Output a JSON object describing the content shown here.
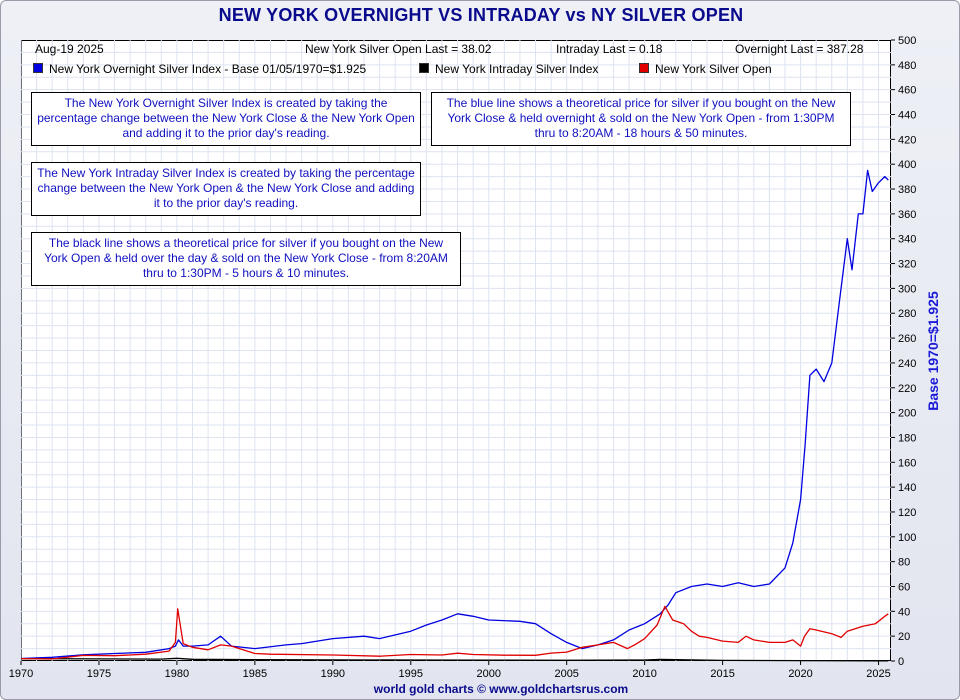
{
  "title": "NEW YORK OVERNIGHT VS INTRADAY vs NY SILVER OPEN",
  "header": {
    "date": "Aug-19  2025",
    "open_last": "New York Silver Open Last = 38.02",
    "intraday_last": "Intraday Last = 0.18",
    "overnight_last": "Overnight Last = 387.28"
  },
  "legend": {
    "overnight": "New York Overnight Silver Index - Base 01/05/1970=$1.925",
    "intraday": "New York Intraday Silver Index",
    "open": "New York Silver Open"
  },
  "notes": {
    "overnight_def": "The New York Overnight Silver Index is created by taking the percentage change between the New York Close & the New York Open and adding it to the prior day's reading.",
    "blue_line": "The blue line shows a theoretical price for silver if you bought on the New York Close & held overnight & sold on the New York Open - from 1:30PM thru to 8:20AM - 18 hours & 50 minutes.",
    "intraday_def": "The New York Intraday Silver Index is created by taking the percentage change between the New York Open & the New York Close and adding it to the prior day's reading.",
    "black_line": "The black line shows a theoretical price for silver if you bought on the New York Open & held over the day & sold on the New York Close - from 8:20AM thru to 1:30PM - 5 hours & 10 minutes."
  },
  "footer": "world gold charts © www.goldchartsrus.com",
  "colors": {
    "overnight": "#0000e0",
    "intraday": "#000000",
    "open": "#e00000",
    "title": "#0a0a8c"
  },
  "chart_data": {
    "type": "line",
    "ylabel": "Base 1970=$1.925",
    "xlim": [
      1970,
      2025.8
    ],
    "ylim": [
      0,
      500
    ],
    "y_ticks": [
      0,
      20,
      40,
      60,
      80,
      100,
      120,
      140,
      160,
      180,
      200,
      220,
      240,
      260,
      280,
      300,
      320,
      340,
      360,
      380,
      400,
      420,
      440,
      460,
      480,
      500
    ],
    "x_ticks": [
      1970,
      1975,
      1980,
      1985,
      1990,
      1995,
      2000,
      2005,
      2010,
      2015,
      2020,
      2025
    ],
    "y_axis_side": "right",
    "grid": true,
    "series": [
      {
        "name": "New York Overnight Silver Index - Base 01/05/1970=$1.925",
        "color": "#0000e0",
        "x": [
          1970,
          1972,
          1974,
          1976,
          1978,
          1979.5,
          1979.9,
          1980.1,
          1980.4,
          1981,
          1982,
          1982.8,
          1983.5,
          1985,
          1987,
          1988,
          1990,
          1992,
          1993,
          1995,
          1996,
          1997,
          1998,
          1999,
          2000,
          2002,
          2003,
          2004,
          2005,
          2006,
          2007,
          2008,
          2009,
          2010,
          2011,
          2011.5,
          2012,
          2013,
          2014,
          2015,
          2016,
          2017,
          2018,
          2019,
          2019.5,
          2020,
          2020.3,
          2020.6,
          2021,
          2021.5,
          2022,
          2022.5,
          2023,
          2023.3,
          2023.7,
          2024,
          2024.3,
          2024.6,
          2025,
          2025.4,
          2025.63
        ],
        "y": [
          2,
          3,
          5,
          6,
          7,
          10,
          12,
          17,
          12,
          12,
          13,
          20,
          12,
          10,
          13,
          14,
          18,
          20,
          18,
          24,
          29,
          33,
          38,
          36,
          33,
          32,
          30,
          22,
          15,
          10,
          13,
          17,
          25,
          30,
          38,
          45,
          55,
          60,
          62,
          60,
          63,
          60,
          62,
          75,
          95,
          130,
          175,
          230,
          235,
          225,
          240,
          290,
          340,
          315,
          360,
          360,
          395,
          378,
          385,
          390,
          387.28
        ]
      },
      {
        "name": "New York Intraday Silver Index",
        "color": "#000000",
        "x": [
          1970,
          1975,
          1979,
          1980,
          1981,
          1985,
          1990,
          1995,
          2000,
          2005,
          2010,
          2011,
          2015,
          2020,
          2025,
          2025.63
        ],
        "y": [
          1.9,
          1.7,
          1.5,
          2.2,
          1.4,
          1.1,
          0.9,
          0.8,
          0.7,
          0.6,
          0.8,
          1.3,
          0.5,
          0.3,
          0.2,
          0.18
        ]
      },
      {
        "name": "New York Silver Open",
        "color": "#e00000",
        "x": [
          1970,
          1972,
          1974,
          1976,
          1978,
          1979.5,
          1979.9,
          1980.05,
          1980.4,
          1981,
          1982,
          1982.8,
          1983.5,
          1985,
          1986,
          1990,
          1993,
          1995,
          1997,
          1998,
          1999,
          2001,
          2003,
          2004,
          2005,
          2006,
          2007,
          2008,
          2008.9,
          2009.5,
          2010,
          2010.8,
          2011.3,
          2011.8,
          2012.5,
          2013,
          2013.5,
          2014,
          2015,
          2016,
          2016.5,
          2017,
          2018,
          2019,
          2019.5,
          2020,
          2020.25,
          2020.6,
          2021,
          2022,
          2022.6,
          2023,
          2024,
          2024.8,
          2025,
          2025.4,
          2025.63
        ],
        "y": [
          1.9,
          1.6,
          4.5,
          4.3,
          5.5,
          8,
          15,
          42,
          14,
          11,
          9,
          13,
          12,
          6,
          5.5,
          4.8,
          3.9,
          5.2,
          4.8,
          6.3,
          5.2,
          4.7,
          4.6,
          6.4,
          7.2,
          11,
          13,
          15,
          10,
          14,
          18,
          29,
          44,
          33,
          30,
          24,
          20,
          19,
          16,
          15,
          20,
          17,
          15,
          15,
          17,
          12,
          20,
          26,
          25,
          22,
          19,
          24,
          28,
          30,
          32,
          36,
          38.02
        ]
      }
    ]
  }
}
